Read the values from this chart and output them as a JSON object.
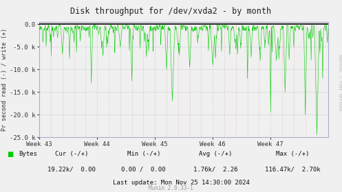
{
  "title": "Disk throughput for /dev/xvda2 - by month",
  "ylabel": "Pr second read (-) / write (+)",
  "xlabel_ticks": [
    "Week 43",
    "Week 44",
    "Week 45",
    "Week 46",
    "Week 47"
  ],
  "ylim": [
    -25000,
    500
  ],
  "yticks": [
    0,
    -5000,
    -10000,
    -15000,
    -20000,
    -25000
  ],
  "ytick_labels": [
    "0.0",
    "-5.0 k",
    "-10.0 k",
    "-15.0 k",
    "-20.0 k",
    "-25.0 k"
  ],
  "bg_color": "#f0f0f0",
  "plot_bg_color": "#f0f0f0",
  "grid_h_color": "#aaaacc",
  "grid_v_color": "#ddaaaa",
  "line_color": "#00cc00",
  "zero_line_color": "#000000",
  "border_color": "#aaaacc",
  "right_label": "RRDTOOL / TOBI OETIKER",
  "legend_label": "Bytes",
  "legend_color": "#00cc00",
  "footer_cur": "Cur (-/+)",
  "footer_min": "Min (-/+)",
  "footer_avg": "Avg (-/+)",
  "footer_max": "Max (-/+)",
  "footer_cur_val": "19.22k/  0.00",
  "footer_min_val": "0.00 /  0.00",
  "footer_avg_val": "1.76k/  2.26",
  "footer_max_val": "116.47k/  2.70k",
  "footer_update": "Last update: Mon Nov 25 14:30:00 2024",
  "footer_munin": "Munin 2.0.33-1",
  "num_points": 2000
}
